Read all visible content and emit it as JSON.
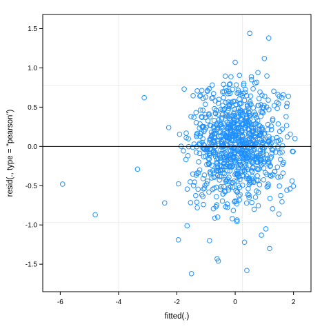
{
  "chart_data": {
    "type": "scatter",
    "xlabel": "fitted(.)",
    "ylabel": "resid(., type = \"pearson\")",
    "xlim": [
      -6.6,
      2.6
    ],
    "ylim": [
      -1.85,
      1.68
    ],
    "x_ticks": [
      -6,
      -4,
      -2,
      0,
      2
    ],
    "y_ticks": [
      -1.5,
      -1.0,
      -0.5,
      0.0,
      0.5,
      1.0,
      1.5
    ],
    "x_tick_labels": [
      "-6",
      "-4",
      "-2",
      "0",
      "2"
    ],
    "y_tick_labels": [
      "-1.5",
      "-1.0",
      "-0.5",
      "0.0",
      "0.5",
      "1.0",
      "1.5"
    ],
    "reference_line_y": 0,
    "grid": "light",
    "grid_x": [
      -4,
      0.25
    ],
    "grid_y": [
      -0.97,
      0.78
    ],
    "point_color": "#1f8fff",
    "points_listed": [
      [
        -5.92,
        -0.48
      ],
      [
        -4.8,
        -0.87
      ],
      [
        -3.12,
        0.62
      ],
      [
        -3.35,
        -0.29
      ],
      [
        -2.28,
        0.24
      ],
      [
        -2.42,
        -0.72
      ],
      [
        -1.75,
        0.73
      ],
      [
        -1.5,
        -1.62
      ],
      [
        -1.32,
        -0.71
      ],
      [
        -1.65,
        -1.01
      ],
      [
        -1.95,
        -1.19
      ],
      [
        -1.3,
        -0.78
      ],
      [
        -0.62,
        -1.43
      ],
      [
        -0.58,
        -1.46
      ],
      [
        -0.88,
        -1.2
      ],
      [
        0.4,
        -1.58
      ],
      [
        0.5,
        1.44
      ],
      [
        1.15,
        1.38
      ],
      [
        0.0,
        1.07
      ],
      [
        1.0,
        1.12
      ],
      [
        -0.95,
        0.71
      ],
      [
        -0.4,
        0.79
      ],
      [
        0.78,
        0.94
      ],
      [
        0.32,
        -1.22
      ],
      [
        0.9,
        -1.13
      ],
      [
        1.05,
        -1.05
      ],
      [
        1.18,
        -1.3
      ],
      [
        1.5,
        -0.86
      ],
      [
        1.95,
        -0.44
      ],
      [
        2.05,
        0.1
      ],
      [
        -0.1,
        -0.92
      ],
      [
        -0.6,
        -0.9
      ]
    ],
    "cloud": {
      "count": 850,
      "x_center": 0.1,
      "x_sd": 0.82,
      "x_min": -2.25,
      "x_max": 2.0,
      "y_center": 0.02,
      "y_sd": 0.37,
      "y_min": -1.0,
      "y_max": 0.95,
      "seed": 7
    }
  }
}
